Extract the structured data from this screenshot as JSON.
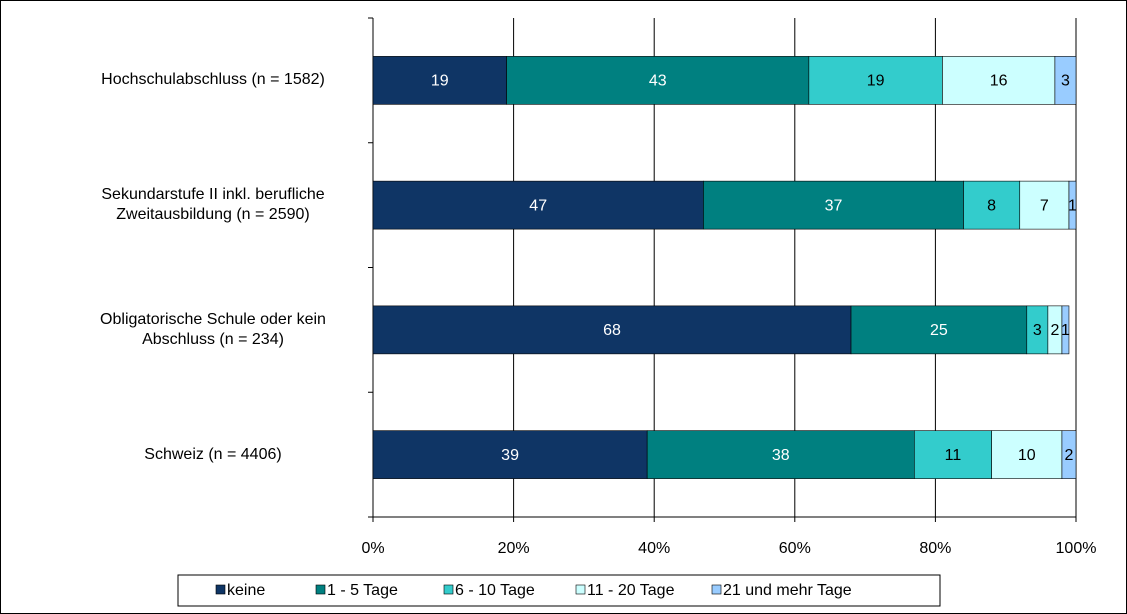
{
  "chart_data": {
    "type": "stacked-bar-horizontal",
    "categories": [
      "Hochschulabschluss (n = 1582)",
      "Sekundarstufe II inkl. berufliche Zweitausbildung (n = 2590)",
      "Obligatorische Schule oder kein Abschluss (n = 234)",
      "Schweiz (n = 4406)"
    ],
    "series": [
      {
        "name": "keine",
        "color": "#0f3565",
        "values": [
          19,
          47,
          68,
          39
        ]
      },
      {
        "name": "1 - 5 Tage",
        "color": "#008080",
        "values": [
          43,
          37,
          25,
          38
        ]
      },
      {
        "name": "6 - 10 Tage",
        "color": "#33cccc",
        "values": [
          19,
          8,
          3,
          11
        ]
      },
      {
        "name": "11 - 20 Tage",
        "color": "#ccffff",
        "values": [
          16,
          7,
          2,
          10
        ]
      },
      {
        "name": "21 und mehr Tage",
        "color": "#99ccff",
        "values": [
          3,
          1,
          1,
          2
        ]
      }
    ],
    "xlim": [
      0,
      100
    ],
    "xticks": [
      {
        "value": 0,
        "label": "0%"
      },
      {
        "value": 20,
        "label": "20%"
      },
      {
        "value": 40,
        "label": "40%"
      },
      {
        "value": 60,
        "label": "60%"
      },
      {
        "value": 80,
        "label": "80%"
      },
      {
        "value": 100,
        "label": "100%"
      }
    ],
    "grid": true,
    "legend": "bottom"
  }
}
